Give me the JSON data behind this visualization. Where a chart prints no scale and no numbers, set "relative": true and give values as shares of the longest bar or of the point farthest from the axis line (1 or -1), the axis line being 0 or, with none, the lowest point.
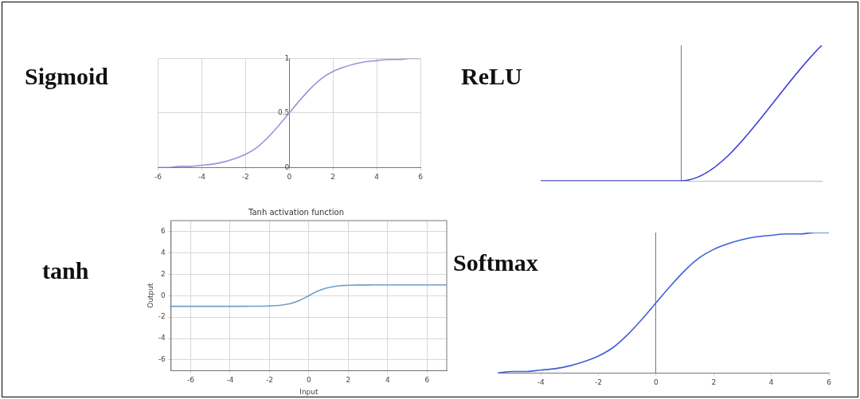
{
  "chart_data": [
    {
      "type": "line",
      "title": "Sigmoid",
      "x": [
        -6,
        -5.5,
        -5,
        -4.5,
        -4,
        -3.5,
        -3,
        -2.5,
        -2,
        -1.5,
        -1,
        -0.5,
        0,
        0.5,
        1,
        1.5,
        2,
        2.5,
        3,
        3.5,
        4,
        4.5,
        5,
        5.5,
        6
      ],
      "series": [
        {
          "color": "#9a93d8",
          "values": [
            0,
            0,
            0.01,
            0.01,
            0.02,
            0.03,
            0.05,
            0.08,
            0.12,
            0.18,
            0.27,
            0.38,
            0.5,
            0.62,
            0.73,
            0.82,
            0.88,
            0.92,
            0.95,
            0.97,
            0.98,
            0.99,
            0.99,
            1,
            1
          ]
        }
      ],
      "xlim": [
        -6,
        6
      ],
      "xticks": [
        -6,
        -4,
        -2,
        0,
        2,
        4,
        6
      ],
      "ylim": [
        0,
        1
      ],
      "yticks": [
        0,
        0.5,
        1
      ],
      "grid": true,
      "marker": "none"
    },
    {
      "type": "line",
      "title": "ReLU",
      "categories": [
        null,
        null,
        null
      ],
      "relative": true,
      "series": [
        {
          "color": "#4040d8",
          "values": [
            0,
            0,
            1
          ]
        }
      ],
      "tick_labels": false,
      "marker": "none"
    },
    {
      "type": "line",
      "title": "tanh",
      "subtitle": "Tanh activation function",
      "xlabel": "Input",
      "ylabel": "Output",
      "x": [
        -7,
        -6.5,
        -6,
        -5.5,
        -5,
        -4.5,
        -4,
        -3.5,
        -3,
        -2.5,
        -2,
        -1.5,
        -1,
        -0.5,
        0,
        0.5,
        1,
        1.5,
        2,
        2.5,
        3,
        3.5,
        4,
        4.5,
        5,
        5.5,
        6,
        6.5,
        7
      ],
      "series": [
        {
          "color": "#6f9fc8",
          "values": [
            -1,
            -1,
            -1,
            -1,
            -1,
            -1,
            -1,
            -1,
            -0.99,
            -0.99,
            -0.96,
            -0.91,
            -0.76,
            -0.46,
            0,
            0.46,
            0.76,
            0.91,
            0.96,
            0.99,
            0.99,
            1,
            1,
            1,
            1,
            1,
            1,
            1,
            1
          ]
        }
      ],
      "xlim": [
        -7,
        7
      ],
      "xticks": [
        -6,
        -4,
        -2,
        0,
        2,
        4,
        6
      ],
      "ylim": [
        -7,
        7
      ],
      "yticks": [
        -6,
        -4,
        -2,
        0,
        2,
        4,
        6
      ],
      "grid": true,
      "marker": "none"
    },
    {
      "type": "line",
      "title": "Softmax",
      "relative": true,
      "x": [
        -5.5,
        -5,
        -4.5,
        -4,
        -3.5,
        -3,
        -2.5,
        -2,
        -1.5,
        -1,
        -0.5,
        0,
        0.5,
        1,
        1.5,
        2,
        2.5,
        3,
        3.5,
        4,
        4.5,
        5,
        5.5,
        6
      ],
      "series": [
        {
          "color": "#3f5fd8",
          "values": [
            0,
            0.01,
            0.01,
            0.02,
            0.03,
            0.05,
            0.08,
            0.12,
            0.18,
            0.27,
            0.38,
            0.5,
            0.62,
            0.73,
            0.82,
            0.88,
            0.92,
            0.95,
            0.97,
            0.98,
            0.99,
            0.99,
            1,
            1
          ]
        }
      ],
      "xlim": [
        -5.5,
        6
      ],
      "xticks": [
        -4,
        -2,
        0,
        2,
        4,
        6
      ],
      "tick_labels": "x",
      "marker": "none"
    }
  ]
}
